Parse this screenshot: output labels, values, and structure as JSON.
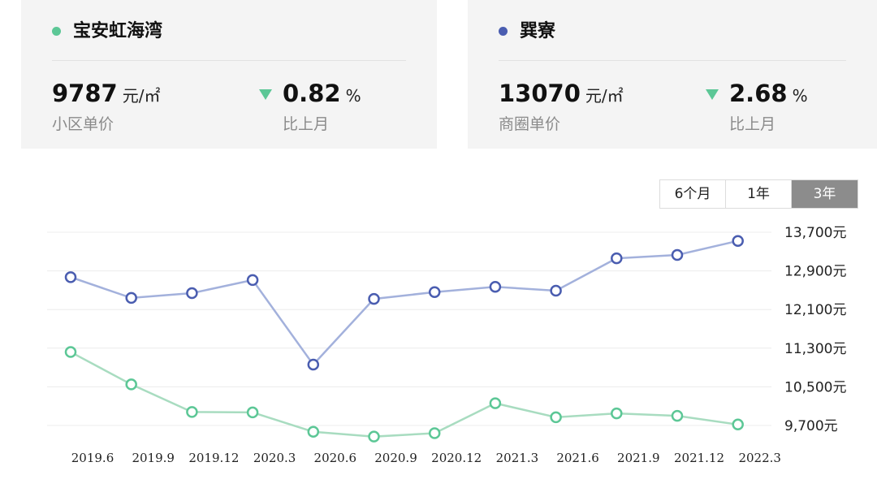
{
  "cards": [
    {
      "name": "宝安虹海湾",
      "dot_color": "#5cc796",
      "price": "9787",
      "unit": "元/㎡",
      "price_label": "小区单价",
      "change": "0.82",
      "change_unit": "%",
      "change_label": "比上月"
    },
    {
      "name": "巽寮",
      "dot_color": "#4a5db0",
      "price": "13070",
      "unit": "元/㎡",
      "price_label": "商圈单价",
      "change": "2.68",
      "change_unit": "%",
      "change_label": "比上月"
    }
  ],
  "range_buttons": [
    "6个月",
    "1年",
    "3年"
  ],
  "active_range": "3年",
  "chart_data": {
    "type": "line",
    "x": [
      "2019.6",
      "2019.9",
      "2019.12",
      "2020.3",
      "2020.6",
      "2020.9",
      "2020.12",
      "2021.3",
      "2021.6",
      "2021.9",
      "2021.12",
      "2022.3"
    ],
    "y_ticks": [
      9700,
      10500,
      11300,
      12100,
      12900,
      13700
    ],
    "y_tick_labels": [
      "9,700元",
      "10,500元",
      "11,300元",
      "12,100元",
      "12,900元",
      "13,700元"
    ],
    "ylim": [
      9500,
      13900
    ],
    "series": [
      {
        "color": "#4a5db0",
        "line_color": "#a3b1dc",
        "values": [
          12770,
          12340,
          12440,
          12710,
          10960,
          12320,
          12460,
          12570,
          12490,
          13160,
          13230,
          13520
        ]
      },
      {
        "color": "#5cc796",
        "line_color": "#a8dcc0",
        "values": [
          11220,
          10550,
          9980,
          9970,
          9570,
          9470,
          9540,
          10160,
          9870,
          9950,
          9900,
          9720
        ]
      }
    ],
    "grid": true
  }
}
